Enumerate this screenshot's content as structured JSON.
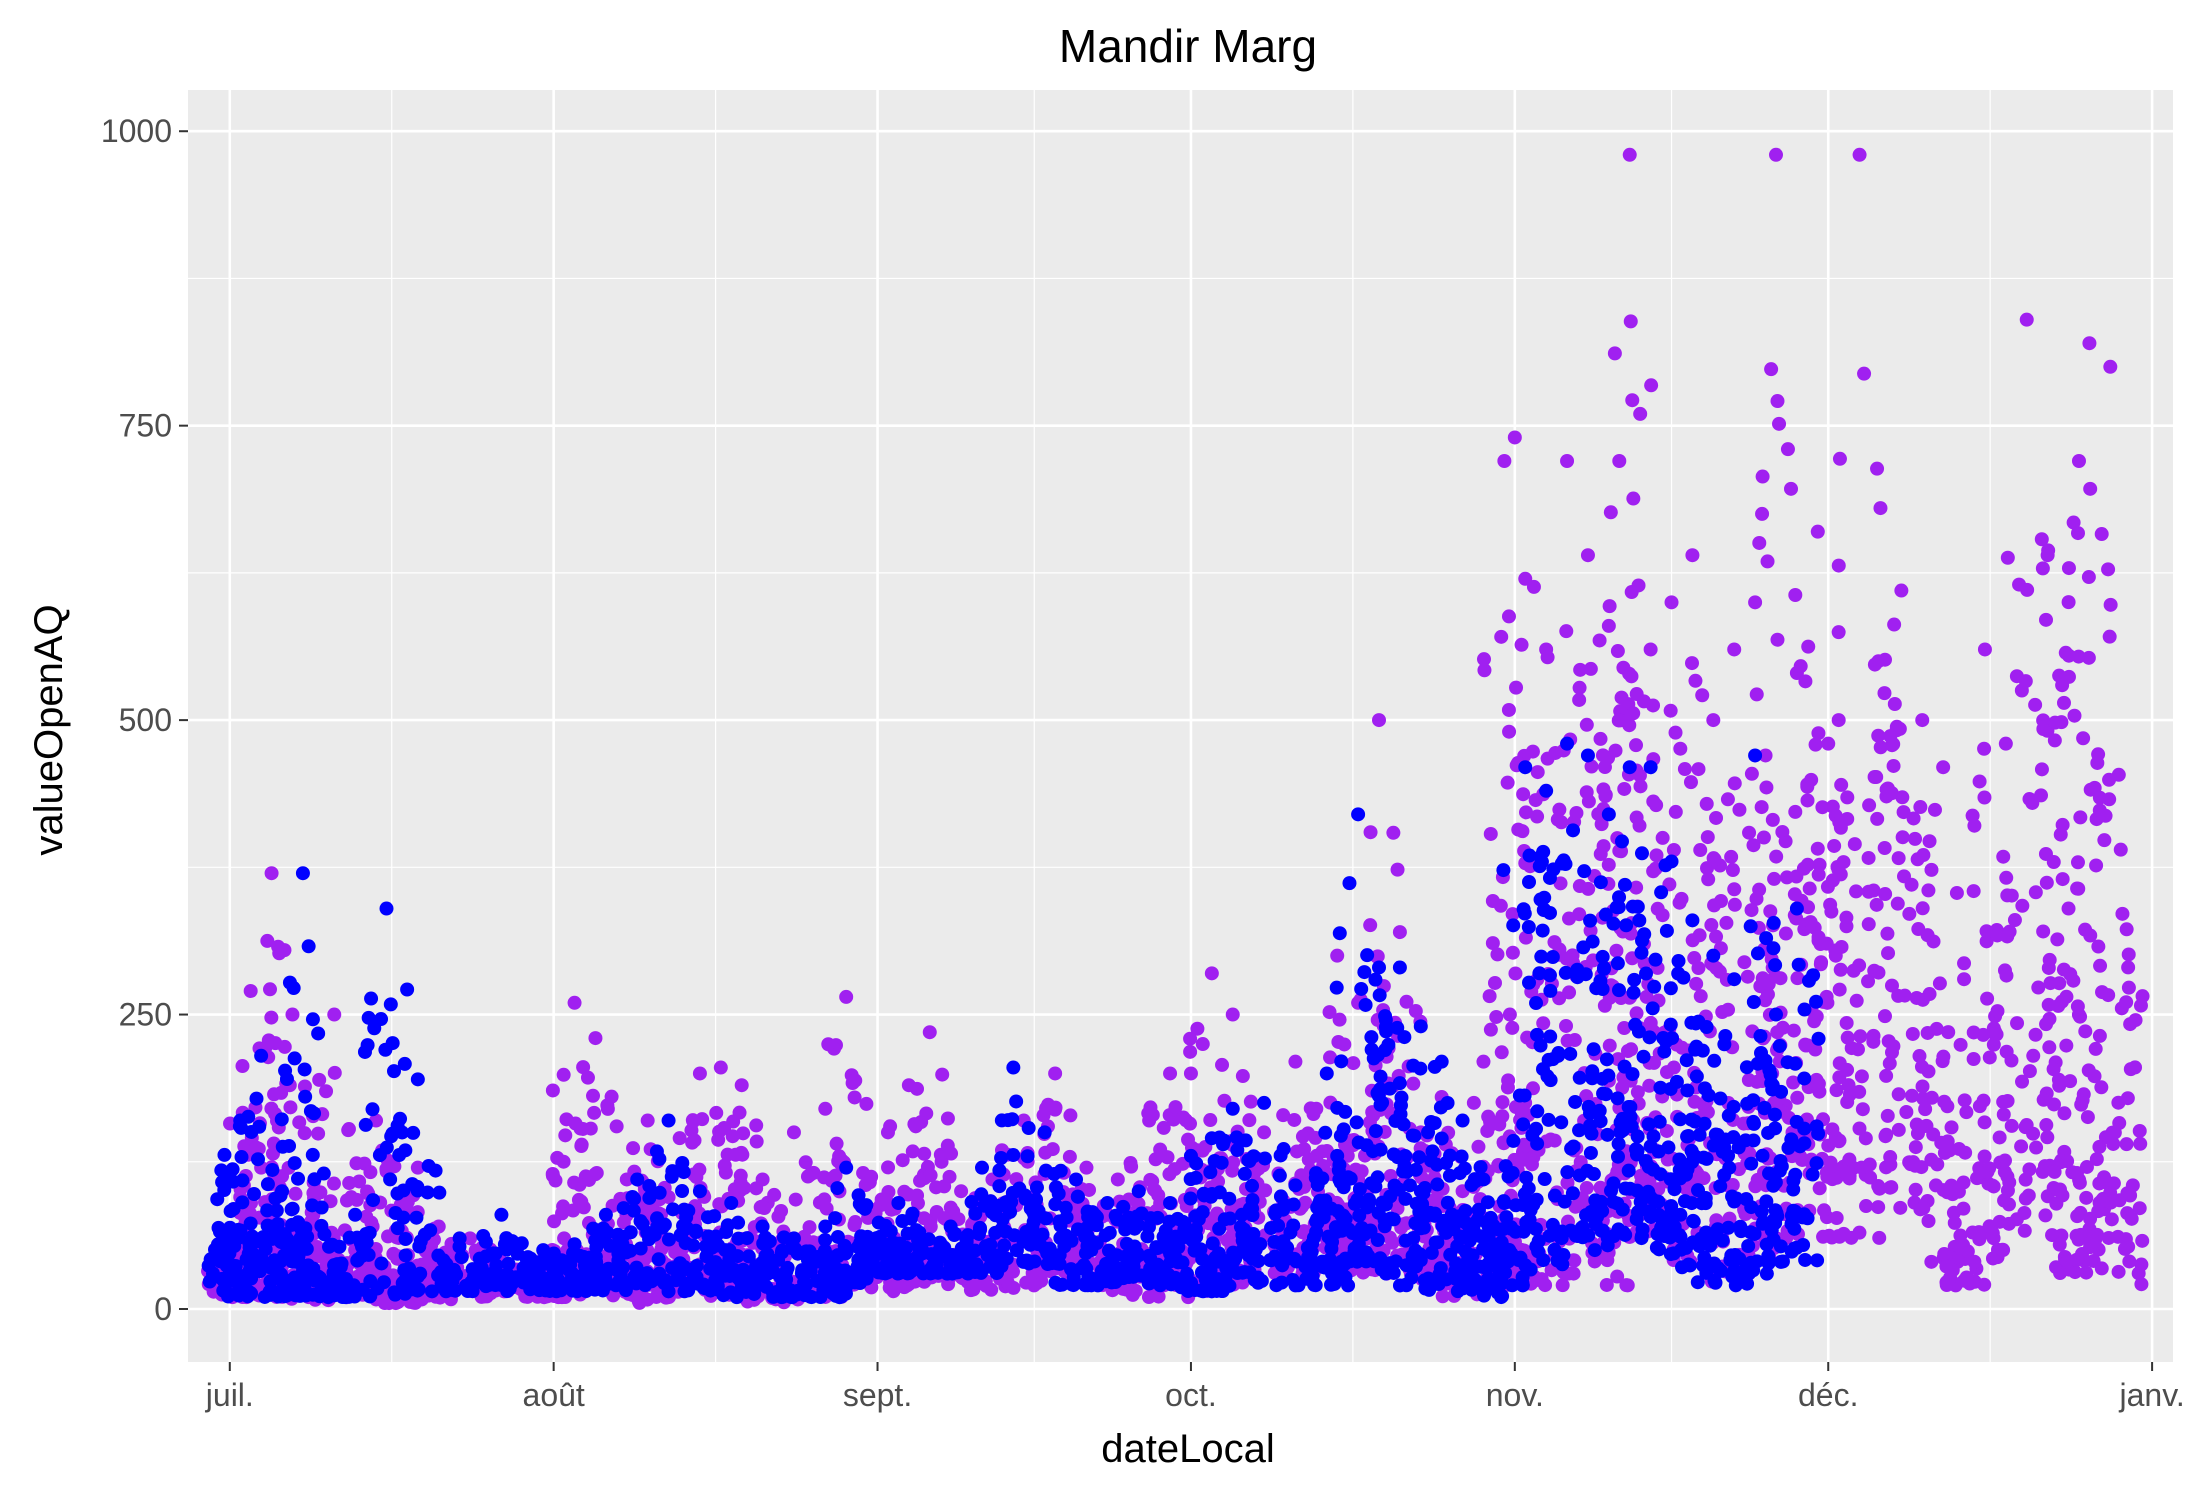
{
  "chart_data": {
    "type": "scatter",
    "title": "Mandir Marg",
    "xlabel": "dateLocal",
    "ylabel": "valueOpenAQ",
    "xlim": [
      "2017-06-27",
      "2018-01-03"
    ],
    "ylim": [
      -45,
      1035
    ],
    "x_ticks": [
      {
        "date": "2017-07-01",
        "label": "juil."
      },
      {
        "date": "2017-08-01",
        "label": "août"
      },
      {
        "date": "2017-09-01",
        "label": "sept."
      },
      {
        "date": "2017-10-01",
        "label": "oct."
      },
      {
        "date": "2017-11-01",
        "label": "nov."
      },
      {
        "date": "2017-12-01",
        "label": "déc."
      },
      {
        "date": "2018-01-01",
        "label": "janv."
      }
    ],
    "y_ticks": [
      {
        "value": 0,
        "label": "0"
      },
      {
        "value": 250,
        "label": "250"
      },
      {
        "value": 500,
        "label": "500"
      },
      {
        "value": 750,
        "label": "750"
      },
      {
        "value": 1000,
        "label": "1000"
      }
    ],
    "grid": true,
    "legend": "none",
    "colors": {
      "panel": "#EBEBEB",
      "grid": "#FFFFFF"
    },
    "series": [
      {
        "color": "#A020F0",
        "x": [
          "2017-07-01",
          "2017-07-02",
          "2017-07-03",
          "2017-07-04",
          "2017-07-05",
          "2017-07-07",
          "2017-07-09",
          "2017-07-11",
          "2017-07-13",
          "2017-07-15",
          "2017-07-17",
          "2017-07-19",
          "2017-07-21",
          "2017-07-24",
          "2017-07-27",
          "2017-07-31",
          "2017-08-02",
          "2017-08-03",
          "2017-08-05",
          "2017-08-08",
          "2017-08-10",
          "2017-08-12",
          "2017-08-15",
          "2017-08-17",
          "2017-08-19",
          "2017-08-21",
          "2017-08-24",
          "2017-08-27",
          "2017-08-29",
          "2017-09-02",
          "2017-09-04",
          "2017-09-06",
          "2017-09-09",
          "2017-09-12",
          "2017-09-15",
          "2017-09-18",
          "2017-09-21",
          "2017-09-24",
          "2017-09-27",
          "2017-09-29",
          "2017-10-01",
          "2017-10-03",
          "2017-10-05",
          "2017-10-08",
          "2017-10-11",
          "2017-10-13",
          "2017-10-15",
          "2017-10-17",
          "2017-10-19",
          "2017-10-21",
          "2017-10-23",
          "2017-10-25",
          "2017-10-27",
          "2017-10-29",
          "2017-10-31",
          "2017-11-01",
          "2017-11-02",
          "2017-11-04",
          "2017-11-06",
          "2017-11-08",
          "2017-11-10",
          "2017-11-11",
          "2017-11-12",
          "2017-11-13",
          "2017-11-14",
          "2017-11-16",
          "2017-11-18",
          "2017-11-20",
          "2017-11-22",
          "2017-11-24",
          "2017-11-25",
          "2017-11-26",
          "2017-11-28",
          "2017-11-30",
          "2017-12-01",
          "2017-12-02",
          "2017-12-04",
          "2017-12-06",
          "2017-12-08",
          "2017-12-10",
          "2017-12-12",
          "2017-12-14",
          "2017-12-16",
          "2017-12-18",
          "2017-12-20",
          "2017-12-22",
          "2017-12-24",
          "2017-12-25",
          "2017-12-26",
          "2017-12-28",
          "2017-12-29"
        ],
        "y": [
          60,
          95,
          270,
          120,
          370,
          250,
          80,
          250,
          50,
          160,
          45,
          120,
          70,
          60,
          40,
          35,
          60,
          260,
          230,
          110,
          160,
          95,
          200,
          205,
          190,
          110,
          150,
          170,
          265,
          150,
          190,
          235,
          100,
          110,
          160,
          200,
          120,
          110,
          160,
          200,
          200,
          285,
          250,
          150,
          210,
          170,
          300,
          260,
          500,
          320,
          150,
          180,
          100,
          210,
          720,
          740,
          620,
          560,
          720,
          640,
          580,
          720,
          980,
          760,
          560,
          600,
          640,
          500,
          560,
          600,
          470,
          980,
          540,
          660,
          480,
          500,
          980,
          680,
          610,
          500,
          460,
          280,
          560,
          480,
          840,
          640,
          340,
          720,
          820,
          800,
          390
        ],
        "ymin": [
          10,
          10,
          15,
          20,
          10,
          10,
          5,
          8,
          10,
          15,
          5,
          10,
          8,
          10,
          15,
          10,
          10,
          15,
          20,
          10,
          5,
          8,
          10,
          10,
          10,
          5,
          8,
          10,
          20,
          15,
          20,
          25,
          20,
          15,
          20,
          30,
          20,
          15,
          10,
          20,
          10,
          20,
          20,
          25,
          30,
          40,
          50,
          30,
          30,
          40,
          30,
          20,
          10,
          20,
          20,
          40,
          20,
          20,
          30,
          40,
          40,
          20,
          60,
          80,
          80,
          60,
          40,
          20,
          30,
          40,
          80,
          60,
          80,
          100,
          110,
          60,
          60,
          120,
          100,
          80,
          40,
          20,
          40,
          50,
          60,
          80,
          30,
          40,
          60,
          40,
          20
        ],
        "ymax_hint": "band"
      },
      {
        "color": "#0000FF",
        "x": [
          "2017-07-01",
          "2017-07-02",
          "2017-07-04",
          "2017-07-06",
          "2017-07-08",
          "2017-07-10",
          "2017-07-13",
          "2017-07-16",
          "2017-07-19",
          "2017-07-23",
          "2017-07-27",
          "2017-07-31",
          "2017-08-03",
          "2017-08-06",
          "2017-08-09",
          "2017-08-12",
          "2017-08-15",
          "2017-08-18",
          "2017-08-21",
          "2017-08-24",
          "2017-08-27",
          "2017-08-29",
          "2017-09-01",
          "2017-09-03",
          "2017-09-05",
          "2017-09-08",
          "2017-09-11",
          "2017-09-14",
          "2017-09-17",
          "2017-09-20",
          "2017-09-23",
          "2017-09-26",
          "2017-09-29",
          "2017-10-01",
          "2017-10-03",
          "2017-10-05",
          "2017-10-08",
          "2017-10-11",
          "2017-10-14",
          "2017-10-15",
          "2017-10-17",
          "2017-10-19",
          "2017-10-21",
          "2017-10-23",
          "2017-10-25",
          "2017-10-27",
          "2017-10-29",
          "2017-10-31",
          "2017-11-02",
          "2017-11-04",
          "2017-11-06",
          "2017-11-08",
          "2017-11-10",
          "2017-11-12",
          "2017-11-14",
          "2017-11-16",
          "2017-11-18",
          "2017-11-20",
          "2017-11-22",
          "2017-11-24",
          "2017-11-26",
          "2017-11-28"
        ],
        "y": [
          110,
          160,
          215,
          100,
          370,
          115,
          80,
          340,
          195,
          60,
          80,
          50,
          55,
          80,
          110,
          160,
          100,
          90,
          70,
          60,
          70,
          120,
          60,
          90,
          65,
          70,
          120,
          205,
          150,
          110,
          90,
          100,
          90,
          130,
          145,
          170,
          175,
          105,
          200,
          130,
          420,
          290,
          290,
          240,
          210,
          160,
          110,
          90,
          460,
          440,
          480,
          470,
          420,
          460,
          460,
          380,
          330,
          300,
          280,
          470,
          250,
          340
        ],
        "ymin": [
          10,
          20,
          10,
          10,
          10,
          10,
          10,
          10,
          15,
          15,
          15,
          15,
          15,
          15,
          20,
          15,
          15,
          10,
          10,
          10,
          10,
          15,
          30,
          30,
          30,
          30,
          30,
          40,
          35,
          20,
          20,
          25,
          20,
          15,
          15,
          20,
          20,
          20,
          20,
          30,
          40,
          40,
          30,
          20,
          15,
          10,
          10,
          20,
          40,
          30,
          60,
          50,
          60,
          60,
          60,
          50,
          30,
          20,
          20,
          30,
          40,
          40
        ],
        "ymax_hint": "band"
      }
    ]
  }
}
